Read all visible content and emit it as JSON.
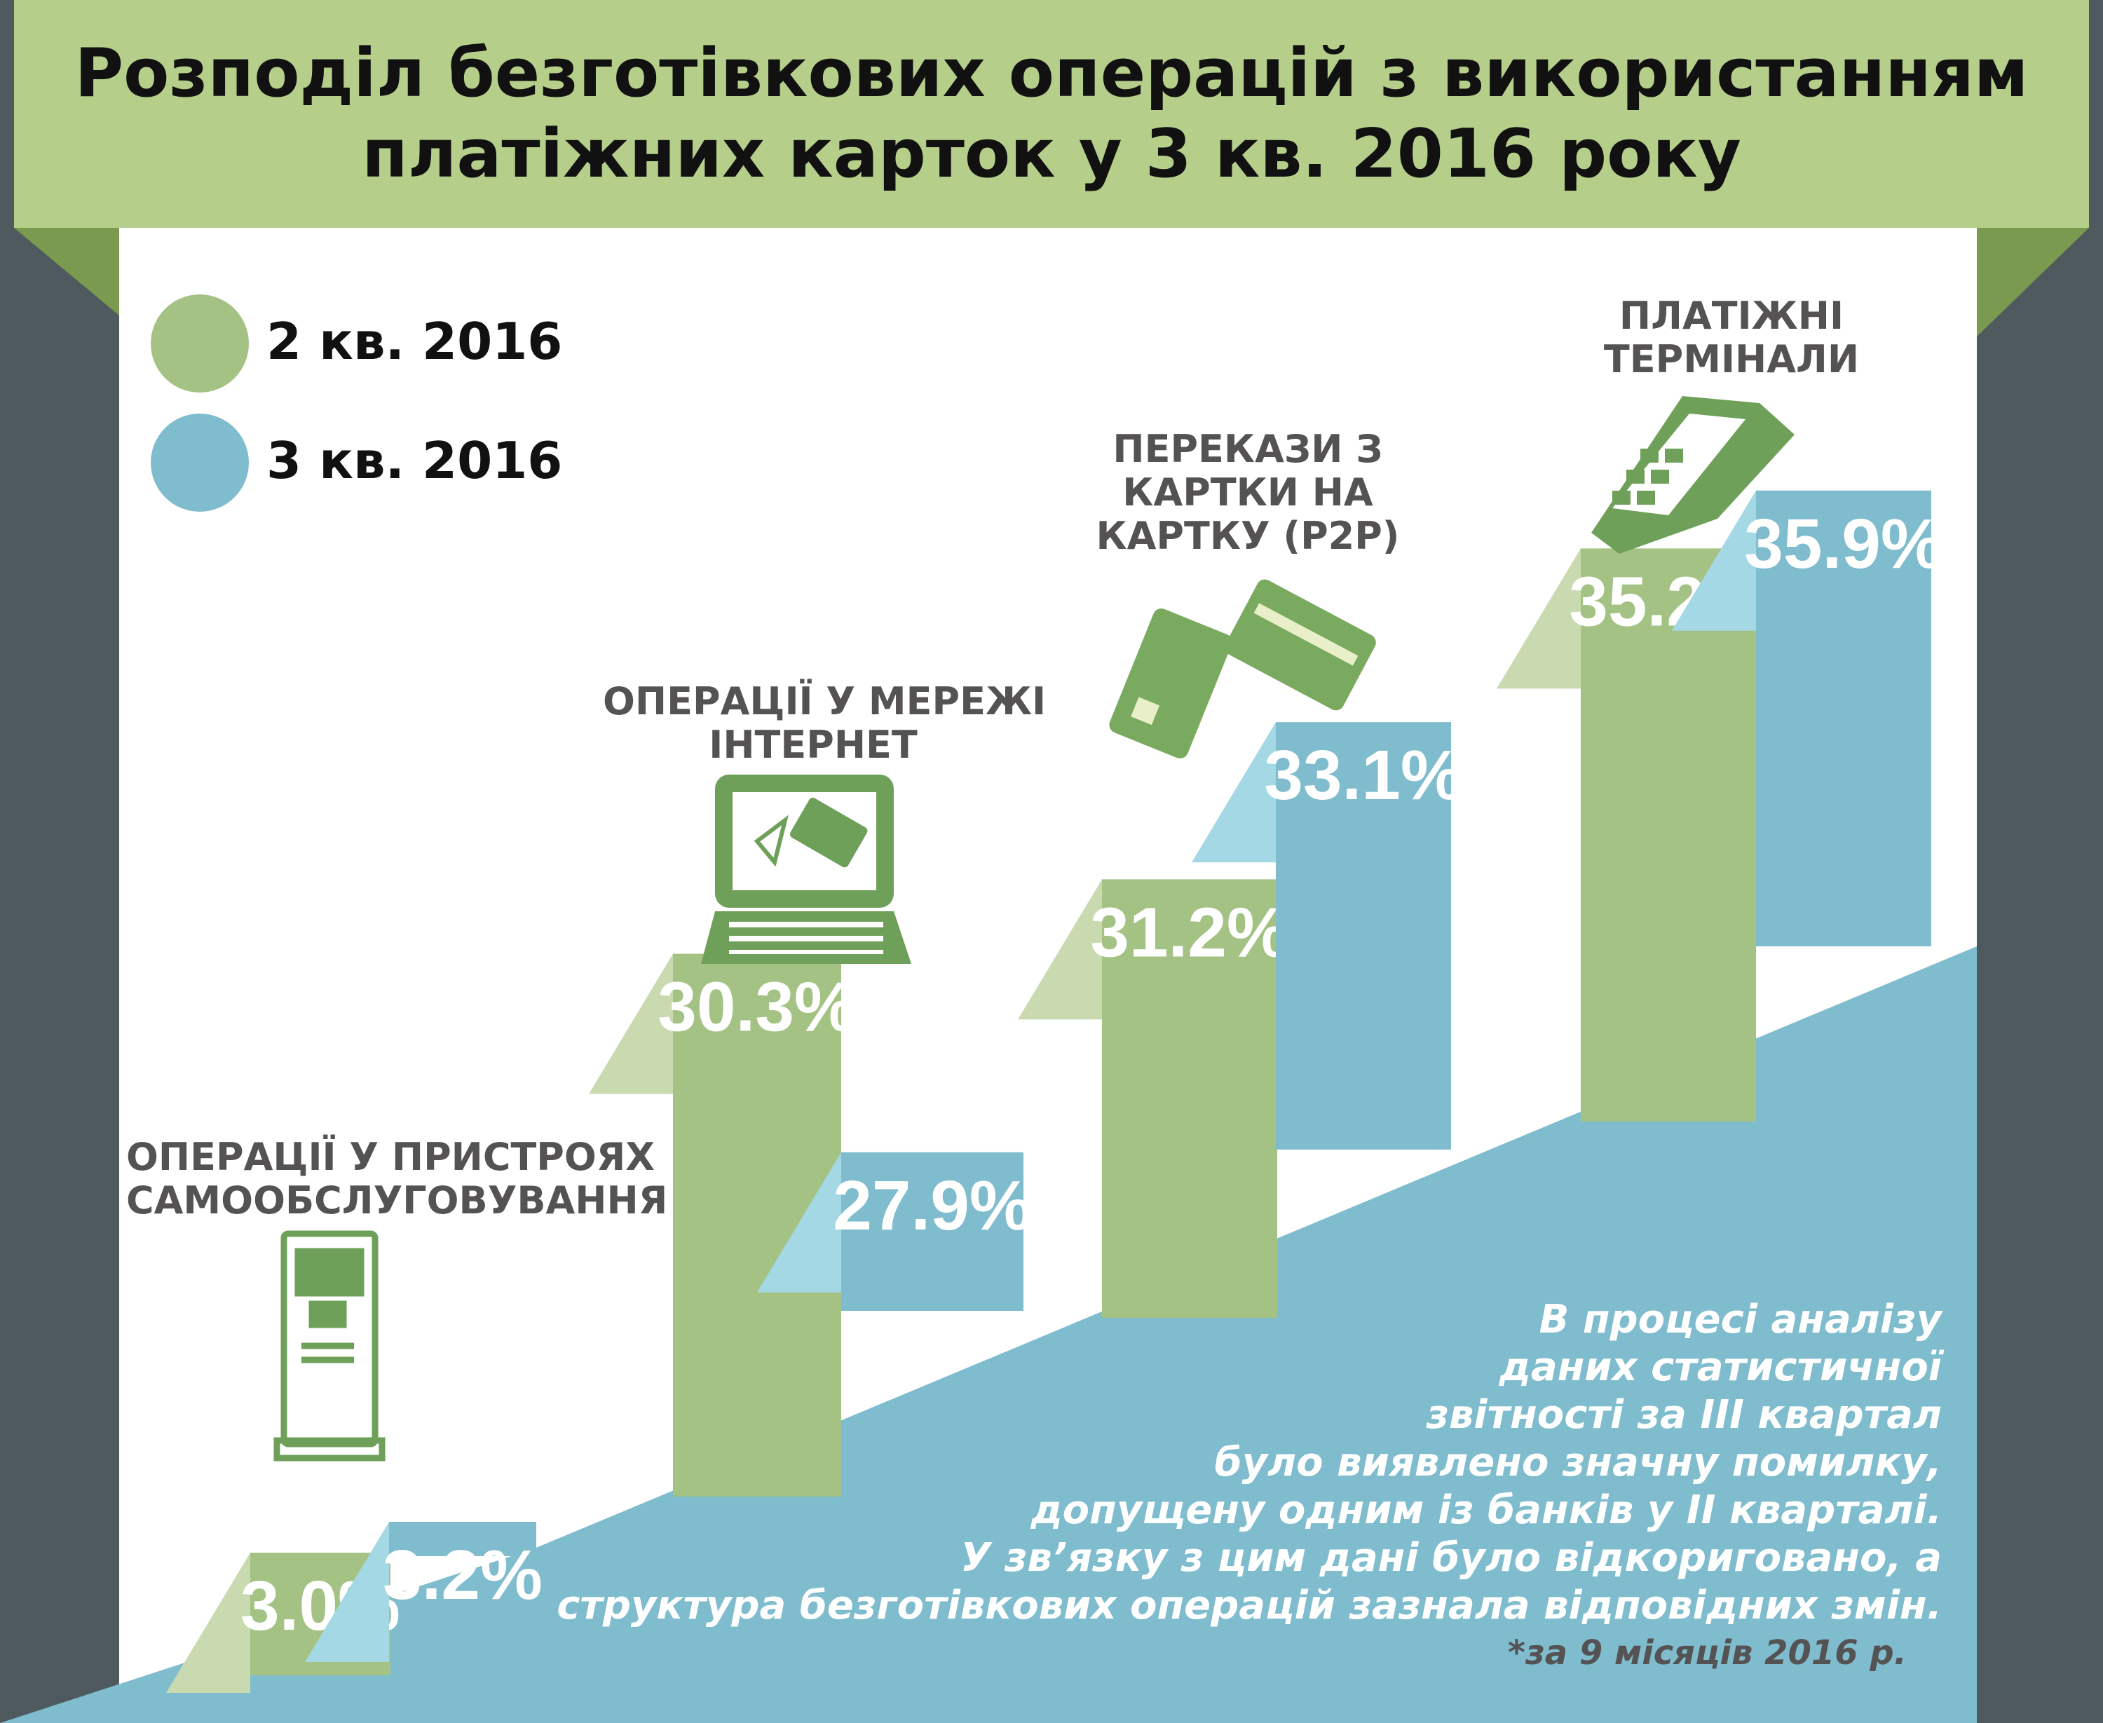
{
  "title": {
    "line1": "Розподіл безготівкових операцій з використанням",
    "line2": "платіжних карток у 3 кв. 2016 року"
  },
  "legend": [
    {
      "label": "2 кв. 2016",
      "color": "#a3c284"
    },
    {
      "label": "3 кв. 2016",
      "color": "#7fbccd"
    }
  ],
  "category_labels": [
    {
      "lines": [
        "ОПЕРАЦІЇ У ПРИСТРОЯХ",
        "САМООБСЛУГОВУВАННЯ"
      ],
      "icon": "atm-icon"
    },
    {
      "lines": [
        "ОПЕРАЦІЇ У МЕРЕЖІ",
        "ІНТЕРНЕТ"
      ],
      "icon": "laptop-icon"
    },
    {
      "lines": [
        "ПЕРЕКАЗИ З",
        "КАРТКИ НА",
        "КАРТКУ (Р2Р)"
      ],
      "icon": "bank-cards-icon"
    },
    {
      "lines": [
        "ПЛАТІЖНІ",
        "ТЕРМІНАЛИ"
      ],
      "icon": "payment-terminal-icon"
    }
  ],
  "chart_data": {
    "type": "bar",
    "categories": [
      "ОПЕРАЦІЇ У ПРИСТРОЯХ САМООБСЛУГОВУВАННЯ",
      "ОПЕРАЦІЇ У МЕРЕЖІ ІНТЕРНЕТ",
      "ПЕРЕКАЗИ З КАРТКИ НА КАРТКУ (Р2Р)",
      "ПЛАТІЖНІ ТЕРМІНАЛИ"
    ],
    "series": [
      {
        "name": "2 кв. 2016",
        "values": [
          3.0,
          30.3,
          31.2,
          35.2
        ],
        "labels": [
          "3.0%",
          "30.3%",
          "31.2%",
          "35.2%"
        ],
        "color": "#a3c284"
      },
      {
        "name": "3 кв. 2016",
        "values": [
          3.2,
          27.9,
          33.1,
          35.9
        ],
        "labels": [
          "3.2%",
          "27.9%",
          "33.1%",
          "35.9%"
        ],
        "color": "#7fbccd"
      }
    ],
    "value_unit": "%",
    "legend": "top-left",
    "grid": false
  },
  "note": {
    "lines": [
      "В процесі аналізу",
      "даних статистичної",
      "звітності за ІІІ квартал",
      "було виявлено значну помилку,",
      "допущену одним із банків у ІІ кварталі.",
      "У зв’язку з цим дані було відкориговано, а",
      "структура безготівкових операцій зазнала відповідних змін."
    ],
    "footnote": "*за 9 місяців 2016 р."
  },
  "colors": {
    "green": "#a3c284",
    "green_light": "#c9dab0",
    "blue": "#7fbccd",
    "blue_light": "#a3d8e4",
    "dark_green": "#7a9a4f",
    "title_band": "#b5ce8a",
    "background": "#4f5a5f",
    "icon": "#6fa05a"
  }
}
